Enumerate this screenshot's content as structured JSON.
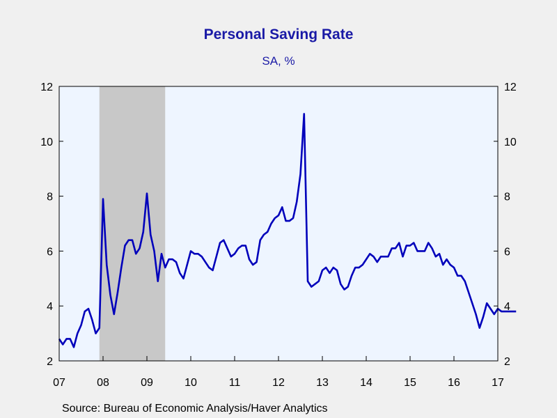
{
  "chart_data": {
    "type": "line",
    "title": "Personal Saving Rate",
    "subtitle": "SA, %",
    "source": "Source:  Bureau of Economic Analysis/Haver Analytics",
    "ylim": [
      2,
      12
    ],
    "y_ticks": [
      2,
      4,
      6,
      8,
      10,
      12
    ],
    "x_ticks": [
      "07",
      "08",
      "09",
      "10",
      "11",
      "12",
      "13",
      "14",
      "15",
      "16",
      "17"
    ],
    "xlim": [
      "2007-01",
      "2017-01"
    ],
    "recession": {
      "start": "2007-12",
      "end": "2009-06"
    },
    "colors": {
      "line": "#0000bb",
      "plot_background": "#eef5ff",
      "recession_shading": "#c8c8c8",
      "title": "#1a1aa6"
    },
    "series": [
      {
        "x": [
          "2007-01",
          "2007-02",
          "2007-03",
          "2007-04",
          "2007-05",
          "2007-06",
          "2007-07",
          "2007-08",
          "2007-09",
          "2007-10",
          "2007-11",
          "2007-12",
          "2008-01",
          "2008-02",
          "2008-03",
          "2008-04",
          "2008-05",
          "2008-06",
          "2008-07",
          "2008-08",
          "2008-09",
          "2008-10",
          "2008-11",
          "2008-12",
          "2009-01",
          "2009-02",
          "2009-03",
          "2009-04",
          "2009-05",
          "2009-06",
          "2009-07",
          "2009-08",
          "2009-09",
          "2009-10",
          "2009-11",
          "2009-12",
          "2010-01",
          "2010-02",
          "2010-03",
          "2010-04",
          "2010-05",
          "2010-06",
          "2010-07",
          "2010-08",
          "2010-09",
          "2010-10",
          "2010-11",
          "2010-12",
          "2011-01",
          "2011-02",
          "2011-03",
          "2011-04",
          "2011-05",
          "2011-06",
          "2011-07",
          "2011-08",
          "2011-09",
          "2011-10",
          "2011-11",
          "2011-12",
          "2012-01",
          "2012-02",
          "2012-03",
          "2012-04",
          "2012-05",
          "2012-06",
          "2012-07",
          "2012-08",
          "2012-09",
          "2012-10",
          "2012-11",
          "2012-12",
          "2013-01",
          "2013-02",
          "2013-03",
          "2013-04",
          "2013-05",
          "2013-06",
          "2013-07",
          "2013-08",
          "2013-09",
          "2013-10",
          "2013-11",
          "2013-12",
          "2014-01",
          "2014-02",
          "2014-03",
          "2014-04",
          "2014-05",
          "2014-06",
          "2014-07",
          "2014-08",
          "2014-09",
          "2014-10",
          "2014-11",
          "2014-12",
          "2015-01",
          "2015-02",
          "2015-03",
          "2015-04",
          "2015-05",
          "2015-06",
          "2015-07",
          "2015-08",
          "2015-09",
          "2015-10",
          "2015-11",
          "2015-12",
          "2016-01",
          "2016-02",
          "2016-03",
          "2016-04",
          "2016-05",
          "2016-06",
          "2016-07",
          "2016-08",
          "2016-09",
          "2016-10",
          "2016-11",
          "2016-12",
          "2017-01",
          "2017-02",
          "2017-03",
          "2017-04",
          "2017-05",
          "2017-06"
        ],
        "values": [
          2.8,
          2.6,
          2.8,
          2.8,
          2.5,
          3.0,
          3.3,
          3.8,
          3.9,
          3.5,
          3.0,
          3.2,
          7.9,
          5.5,
          4.4,
          3.7,
          4.5,
          5.4,
          6.2,
          6.4,
          6.4,
          5.9,
          6.1,
          6.7,
          8.1,
          6.6,
          6.0,
          4.9,
          5.9,
          5.4,
          5.7,
          5.7,
          5.6,
          5.2,
          5.0,
          5.5,
          6.0,
          5.9,
          5.9,
          5.8,
          5.6,
          5.4,
          5.3,
          5.8,
          6.3,
          6.4,
          6.1,
          5.8,
          5.9,
          6.1,
          6.2,
          6.2,
          5.7,
          5.5,
          5.6,
          6.4,
          6.6,
          6.7,
          7.0,
          7.2,
          7.3,
          7.6,
          7.1,
          7.1,
          7.2,
          7.8,
          8.8,
          11.0,
          4.9,
          4.7,
          4.8,
          4.9,
          5.3,
          5.4,
          5.2,
          5.4,
          5.3,
          4.8,
          4.6,
          4.7,
          5.1,
          5.4,
          5.4,
          5.5,
          5.7,
          5.9,
          5.8,
          5.6,
          5.8,
          5.8,
          5.8,
          6.1,
          6.1,
          6.3,
          5.8,
          6.2,
          6.2,
          6.3,
          6.0,
          6.0,
          6.0,
          6.3,
          6.1,
          5.8,
          5.9,
          5.5,
          5.7,
          5.5,
          5.4,
          5.1,
          5.1,
          4.9,
          4.5,
          4.1,
          3.7,
          3.2,
          3.6,
          4.1,
          3.9,
          3.7,
          3.9,
          3.8,
          3.8,
          3.8,
          3.8,
          3.8
        ]
      }
    ]
  }
}
